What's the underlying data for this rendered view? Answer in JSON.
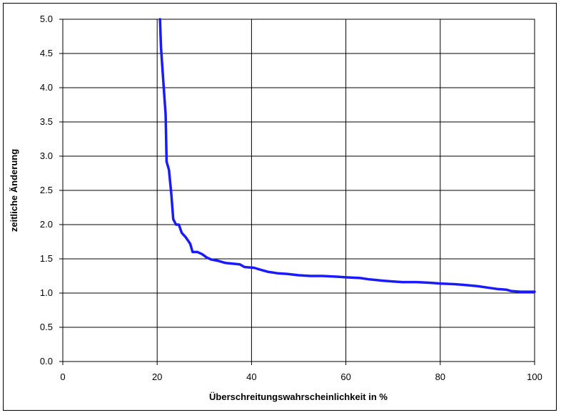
{
  "chart_data": {
    "type": "line",
    "title": "",
    "xlabel": "Überschreitungswahrscheinlichkeit in %",
    "ylabel": "zeitliche Änderung",
    "xlim": [
      0,
      100
    ],
    "ylim": [
      0.0,
      5.0
    ],
    "grid": true,
    "legend": "none",
    "x_ticks": [
      "0",
      "20",
      "40",
      "60",
      "80",
      "100"
    ],
    "y_ticks": [
      "0.0",
      "0.5",
      "1.0",
      "1.5",
      "2.0",
      "2.5",
      "3.0",
      "3.5",
      "4.0",
      "4.5",
      "5.0"
    ],
    "line_color": "#1a1aff",
    "series": [
      {
        "x": [
          20.6,
          20.8,
          21.2,
          21.8,
          22.0,
          22.5,
          23.0,
          23.4,
          24.0,
          24.6,
          25.2,
          26.0,
          27.0,
          27.5,
          28.5,
          29.5,
          30.5,
          31.5,
          33.0,
          34.5,
          36.0,
          37.5,
          38.5,
          40.5,
          42.0,
          43.5,
          45.5,
          47.5,
          50.0,
          52.5,
          55.0,
          58.0,
          60.0,
          63.0,
          65.0,
          68.0,
          70.0,
          72.0,
          75.0,
          78.0,
          80.0,
          83.0,
          85.0,
          88.0,
          90.0,
          92.0,
          94.0,
          95.0,
          97.0,
          100.0
        ],
        "y": [
          5.0,
          4.6,
          4.2,
          3.6,
          2.92,
          2.8,
          2.45,
          2.08,
          2.0,
          2.0,
          1.88,
          1.82,
          1.72,
          1.6,
          1.6,
          1.57,
          1.52,
          1.49,
          1.47,
          1.44,
          1.43,
          1.42,
          1.38,
          1.37,
          1.34,
          1.31,
          1.29,
          1.28,
          1.26,
          1.25,
          1.25,
          1.24,
          1.23,
          1.22,
          1.2,
          1.18,
          1.17,
          1.16,
          1.16,
          1.15,
          1.14,
          1.13,
          1.12,
          1.1,
          1.08,
          1.06,
          1.05,
          1.03,
          1.02,
          1.02
        ]
      }
    ]
  }
}
